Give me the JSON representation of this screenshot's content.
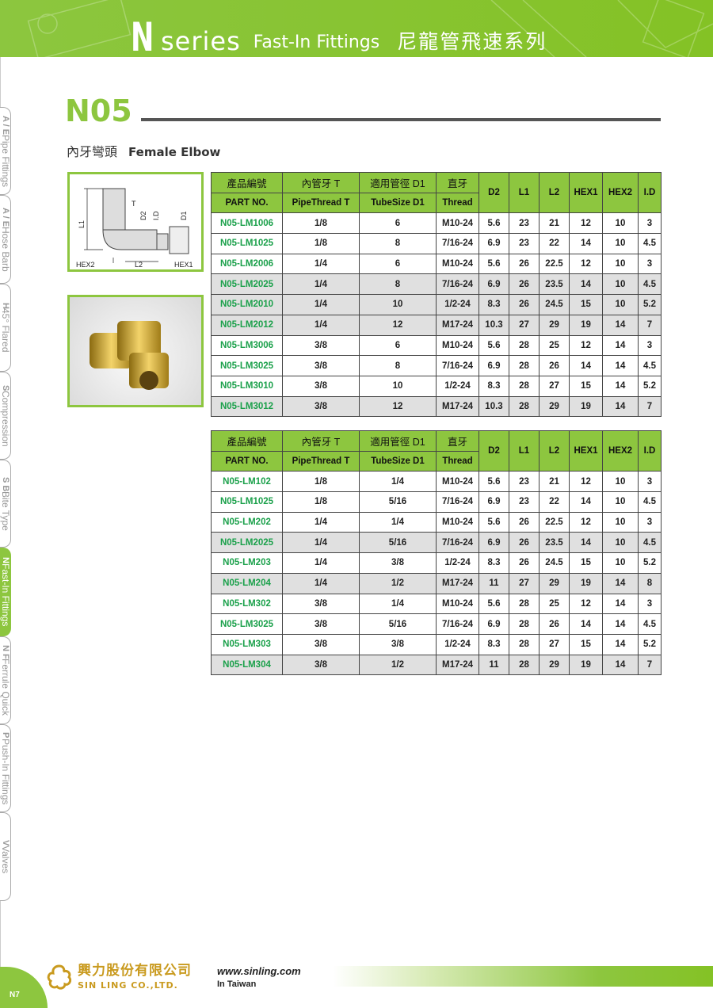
{
  "header": {
    "series_letter": "N",
    "series_word": "series",
    "english": "Fast-In Fittings",
    "chinese": "尼龍管飛速系列"
  },
  "product": {
    "code": "N05",
    "name_cn": "內牙彎頭",
    "name_en": "Female Elbow"
  },
  "side_tabs": [
    {
      "code": "A / E",
      "label": "Pipe Fittings",
      "active": false
    },
    {
      "code": "A / E",
      "label": "Hose Barb",
      "active": false
    },
    {
      "code": "H",
      "label": "45° Flared",
      "active": false
    },
    {
      "code": "S",
      "label": "Compression",
      "active": false
    },
    {
      "code": "S B",
      "label": "Bite Type",
      "active": false
    },
    {
      "code": "N",
      "label": "Fast-In Fittings",
      "active": true
    },
    {
      "code": "N F",
      "label": "Ferrule Quick",
      "active": false
    },
    {
      "code": "P",
      "label": "Push-In Fittings",
      "active": false
    },
    {
      "code": "V",
      "label": "Valves",
      "active": false
    }
  ],
  "drawing_labels": {
    "l1": "L1",
    "l2": "L2",
    "t": "T",
    "d2": "D2",
    "id": "I.D",
    "d1": "D1",
    "hex1": "HEX1",
    "hex2": "HEX2"
  },
  "table_headers": {
    "cn": [
      "產品編號",
      "內管牙 T",
      "適用管徑 D1",
      "直牙"
    ],
    "en": [
      "PART NO.",
      "PipeThread T",
      "TubeSize D1",
      "Thread"
    ],
    "single": [
      "D2",
      "L1",
      "L2",
      "HEX1",
      "HEX2",
      "I.D"
    ]
  },
  "table1": [
    [
      "N05-LM1006",
      "1/8",
      "6",
      "M10-24",
      "5.6",
      "23",
      "21",
      "12",
      "10",
      "3",
      false
    ],
    [
      "N05-LM1025",
      "1/8",
      "8",
      "7/16-24",
      "6.9",
      "23",
      "22",
      "14",
      "10",
      "4.5",
      false
    ],
    [
      "N05-LM2006",
      "1/4",
      "6",
      "M10-24",
      "5.6",
      "26",
      "22.5",
      "12",
      "10",
      "3",
      false
    ],
    [
      "N05-LM2025",
      "1/4",
      "8",
      "7/16-24",
      "6.9",
      "26",
      "23.5",
      "14",
      "10",
      "4.5",
      true
    ],
    [
      "N05-LM2010",
      "1/4",
      "10",
      "1/2-24",
      "8.3",
      "26",
      "24.5",
      "15",
      "10",
      "5.2",
      true
    ],
    [
      "N05-LM2012",
      "1/4",
      "12",
      "M17-24",
      "10.3",
      "27",
      "29",
      "19",
      "14",
      "7",
      true
    ],
    [
      "N05-LM3006",
      "3/8",
      "6",
      "M10-24",
      "5.6",
      "28",
      "25",
      "12",
      "14",
      "3",
      false
    ],
    [
      "N05-LM3025",
      "3/8",
      "8",
      "7/16-24",
      "6.9",
      "28",
      "26",
      "14",
      "14",
      "4.5",
      false
    ],
    [
      "N05-LM3010",
      "3/8",
      "10",
      "1/2-24",
      "8.3",
      "28",
      "27",
      "15",
      "14",
      "5.2",
      false
    ],
    [
      "N05-LM3012",
      "3/8",
      "12",
      "M17-24",
      "10.3",
      "28",
      "29",
      "19",
      "14",
      "7",
      true
    ]
  ],
  "table2": [
    [
      "N05-LM102",
      "1/8",
      "1/4",
      "M10-24",
      "5.6",
      "23",
      "21",
      "12",
      "10",
      "3",
      false
    ],
    [
      "N05-LM1025",
      "1/8",
      "5/16",
      "7/16-24",
      "6.9",
      "23",
      "22",
      "14",
      "10",
      "4.5",
      false
    ],
    [
      "N05-LM202",
      "1/4",
      "1/4",
      "M10-24",
      "5.6",
      "26",
      "22.5",
      "12",
      "10",
      "3",
      false
    ],
    [
      "N05-LM2025",
      "1/4",
      "5/16",
      "7/16-24",
      "6.9",
      "26",
      "23.5",
      "14",
      "10",
      "4.5",
      true
    ],
    [
      "N05-LM203",
      "1/4",
      "3/8",
      "1/2-24",
      "8.3",
      "26",
      "24.5",
      "15",
      "10",
      "5.2",
      false
    ],
    [
      "N05-LM204",
      "1/4",
      "1/2",
      "M17-24",
      "11",
      "27",
      "29",
      "19",
      "14",
      "8",
      true
    ],
    [
      "N05-LM302",
      "3/8",
      "1/4",
      "M10-24",
      "5.6",
      "28",
      "25",
      "12",
      "14",
      "3",
      false
    ],
    [
      "N05-LM3025",
      "3/8",
      "5/16",
      "7/16-24",
      "6.9",
      "28",
      "26",
      "14",
      "14",
      "4.5",
      false
    ],
    [
      "N05-LM303",
      "3/8",
      "3/8",
      "1/2-24",
      "8.3",
      "28",
      "27",
      "15",
      "14",
      "5.2",
      false
    ],
    [
      "N05-LM304",
      "3/8",
      "1/2",
      "M17-24",
      "11",
      "28",
      "29",
      "19",
      "14",
      "7",
      true
    ]
  ],
  "footer": {
    "company_cn": "興力股份有限公司",
    "company_en": "SIN LING CO.,LTD.",
    "website": "www.sinling.com",
    "origin": "In Taiwan",
    "page": "N7"
  },
  "colors": {
    "brand_green": "#8dc63f",
    "part_green": "#1aa04a",
    "gold": "#c99a1e",
    "row_gray": "#e0e0e0"
  }
}
